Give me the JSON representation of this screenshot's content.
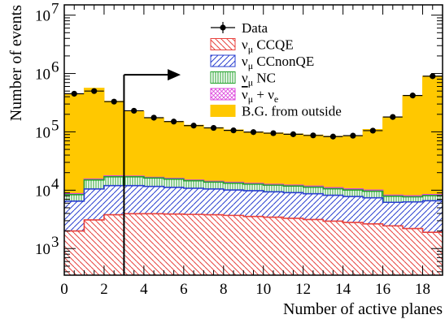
{
  "chart_data": {
    "type": "stacked-histogram",
    "xlabel": "Number of active planes",
    "ylabel": "Number of events",
    "xlim": [
      0,
      19
    ],
    "ylim": [
      350,
      15000000
    ],
    "yscale": "log",
    "x_ticks": [
      0,
      2,
      4,
      6,
      8,
      10,
      12,
      14,
      16,
      18
    ],
    "y_ticks": [
      {
        "value": 1000,
        "base": "10",
        "exp": "3"
      },
      {
        "value": 10000,
        "base": "10",
        "exp": "4"
      },
      {
        "value": 100000,
        "base": "10",
        "exp": "5"
      },
      {
        "value": 1000000,
        "base": "10",
        "exp": "6"
      },
      {
        "value": 10000000,
        "base": "10",
        "exp": "7"
      }
    ],
    "bin_edges": [
      0,
      1,
      2,
      3,
      4,
      5,
      6,
      7,
      8,
      9,
      10,
      11,
      12,
      13,
      14,
      15,
      16,
      17,
      18,
      19
    ],
    "stack_order": [
      "ccqe",
      "ccnonqe",
      "nc",
      "nubar_nue",
      "bg"
    ],
    "series": [
      {
        "key": "ccqe",
        "name_main": "ν",
        "name_sub": "μ",
        "name_rest": " CCQE",
        "color": "#e8413c",
        "cumulative": [
          2000,
          3100,
          3800,
          3950,
          3950,
          3900,
          3850,
          3800,
          3700,
          3550,
          3450,
          3300,
          3150,
          2950,
          2800,
          2650,
          2450,
          2200,
          1900
        ]
      },
      {
        "key": "ccnonqe",
        "name_main": "ν",
        "name_sub": "μ",
        "name_rest": " CCnonQE",
        "color": "#2a3fd0",
        "cumulative": [
          6500,
          10500,
          12000,
          12000,
          11600,
          11200,
          10800,
          10500,
          10100,
          9800,
          9400,
          9100,
          8700,
          8200,
          7800,
          7400,
          6200,
          6300,
          6600
        ]
      },
      {
        "key": "nc",
        "name_main": "ν",
        "name_sub": "μ",
        "name_rest": " NC",
        "color": "#22a22a",
        "cumulative": [
          8400,
          15000,
          17000,
          17000,
          16200,
          15500,
          14500,
          13800,
          13200,
          12700,
          12200,
          11800,
          11300,
          10600,
          10100,
          9600,
          7900,
          7700,
          8100
        ]
      },
      {
        "key": "nubar_nue",
        "name_main": "ν",
        "name_sub": "μ",
        "name_rest": " + ν",
        "name_sub2": "e",
        "bar": true,
        "color": "#dd44dd",
        "cumulative": [
          8700,
          15500,
          17500,
          17400,
          16600,
          15900,
          14900,
          14200,
          13600,
          13100,
          12600,
          12200,
          11700,
          11000,
          10500,
          10000,
          8200,
          8000,
          8400
        ]
      },
      {
        "key": "bg",
        "name_main": "B.G. from outside",
        "color": "#ffc800",
        "cumulative": [
          450000,
          560000,
          335000,
          225000,
          175000,
          150000,
          130000,
          118000,
          108000,
          100000,
          96000,
          92000,
          88000,
          84000,
          86000,
          110000,
          180000,
          420000,
          900000
        ]
      }
    ],
    "data_points": {
      "name": "Data",
      "x": [
        0.5,
        1.5,
        2.5,
        3.5,
        4.5,
        5.5,
        6.5,
        7.5,
        8.5,
        9.5,
        10.5,
        11.5,
        12.5,
        13.5,
        14.5,
        15.5,
        16.5,
        17.5,
        18.5
      ],
      "y": [
        450000,
        500000,
        330000,
        230000,
        175000,
        150000,
        128000,
        117000,
        106000,
        99000,
        95000,
        91000,
        87000,
        83000,
        86000,
        105000,
        180000,
        420000,
        900000
      ]
    },
    "cut_arrow": {
      "x": 3,
      "y_start": 350,
      "y_top": 950000,
      "x_end": 5.6
    }
  }
}
